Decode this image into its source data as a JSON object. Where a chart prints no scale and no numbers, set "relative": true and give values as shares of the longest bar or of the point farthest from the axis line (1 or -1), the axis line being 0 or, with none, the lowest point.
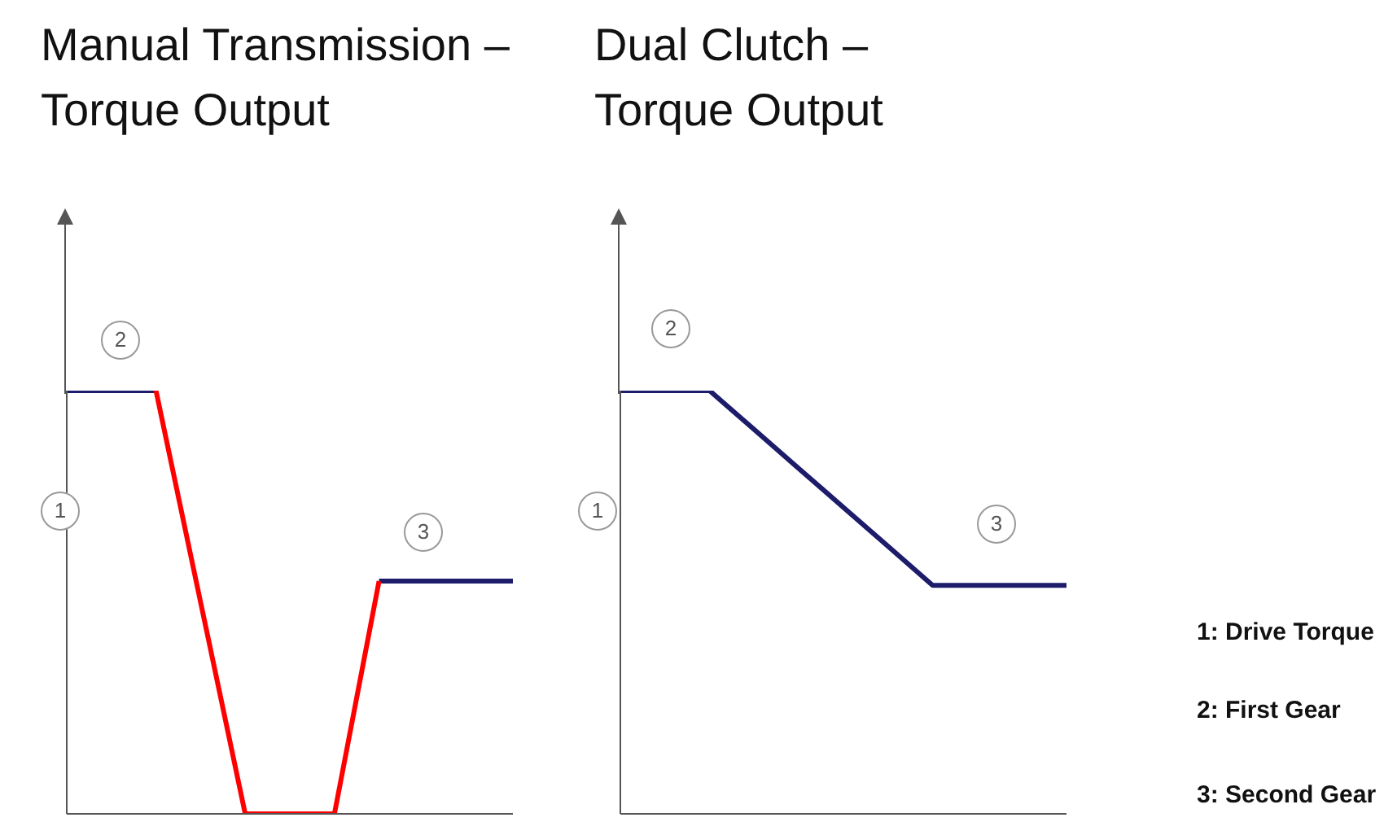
{
  "chart_data": [
    {
      "type": "line",
      "title": "Manual Transmission – Torque Output",
      "relative": true,
      "categories": [
        null,
        null,
        null,
        null,
        null,
        null,
        null,
        null,
        null,
        null,
        null
      ],
      "series": [
        {
          "color": "#1c1c6b",
          "values": [
            1,
            1,
            1,
            null,
            null,
            null,
            null,
            0.55,
            0.55,
            0.55,
            0.55
          ]
        },
        {
          "color": "#ff0000",
          "values": [
            null,
            null,
            1,
            0.5,
            0,
            0,
            0,
            0.55,
            null,
            null,
            null
          ]
        }
      ],
      "annotations": [
        "1",
        "2",
        "3"
      ],
      "legend": false,
      "grid": false
    },
    {
      "type": "line",
      "title": "Dual Clutch – Torque Output",
      "relative": true,
      "categories": [
        null,
        null,
        null,
        null,
        null,
        null,
        null,
        null,
        null,
        null,
        null
      ],
      "series": [
        {
          "color": "#1c1c6b",
          "values": [
            1,
            1,
            1,
            0.908,
            0.816,
            0.724,
            0.632,
            0.54,
            0.54,
            0.54,
            0.54
          ]
        }
      ],
      "annotations": [
        "1",
        "2",
        "3",
        "1: Drive Torque",
        "2: First Gear",
        "3: Second Gear"
      ],
      "legend": false,
      "grid": false
    }
  ]
}
